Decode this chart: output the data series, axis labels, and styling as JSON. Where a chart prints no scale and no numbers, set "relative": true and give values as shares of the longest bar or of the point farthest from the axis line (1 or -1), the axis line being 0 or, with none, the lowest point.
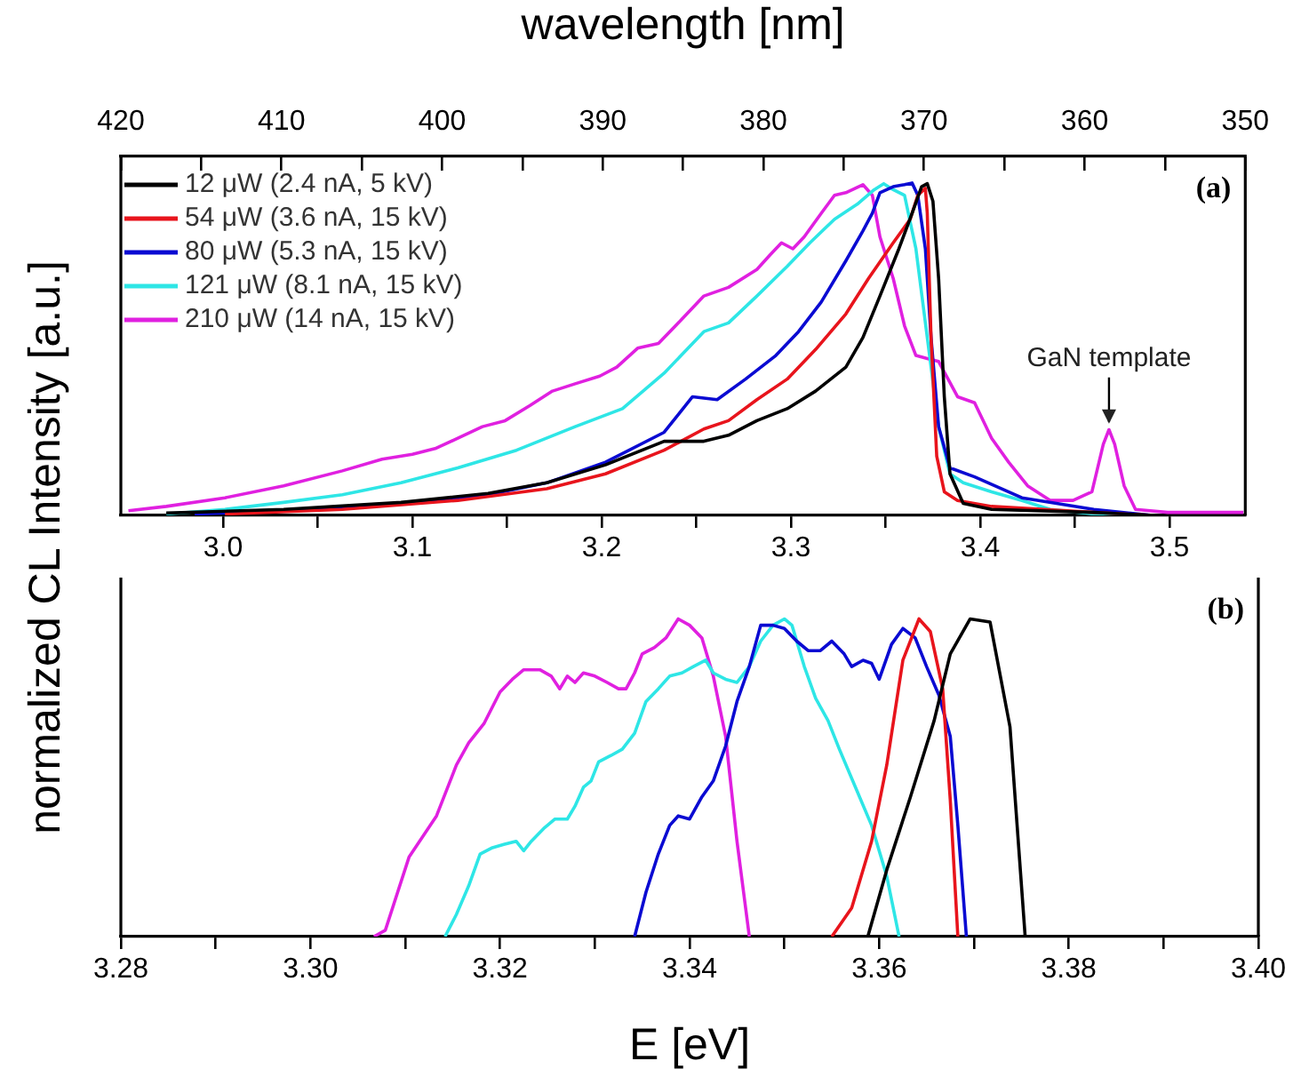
{
  "chart_data": [
    {
      "type": "line",
      "x2label": "wavelength [nm]",
      "ylabel": "normalized CL Intensity [a.u.]",
      "relative": true,
      "tick_labels": "x",
      "legend": "top left",
      "xlim": [
        2.946,
        3.54
      ],
      "xticks": [
        {
          "value": 3,
          "label": "3.0"
        },
        {
          "value": 3.05,
          "label": null
        },
        3.1,
        {
          "value": 3.15,
          "label": null
        },
        3.2,
        {
          "value": 3.25,
          "label": null
        },
        3.3,
        {
          "value": 3.35,
          "label": null
        },
        3.4,
        {
          "value": 3.45,
          "label": null
        },
        3.5
      ],
      "x2lim": [
        420,
        350
      ],
      "x2ticks": [
        420,
        {
          "value": 415,
          "label": null
        },
        410,
        {
          "value": 405,
          "label": null
        },
        400,
        {
          "value": 395,
          "label": null
        },
        390,
        {
          "value": 385,
          "label": null
        },
        380,
        {
          "value": 375,
          "label": null
        },
        370,
        {
          "value": 365,
          "label": null
        },
        360,
        {
          "value": 355,
          "label": null
        },
        350
      ],
      "annotations": [
        "(a)",
        {
          "text": "GaN template",
          "x": 3.468,
          "y": 0.26
        }
      ],
      "series": [
        {
          "name": "12 μW (2.4 nA, 5 kV)",
          "color": "#000000",
          "x": [
            2.97,
            3.032,
            3.094,
            3.14,
            3.171,
            3.202,
            3.233,
            3.254,
            3.267,
            3.282,
            3.298,
            3.313,
            3.329,
            3.338,
            3.347,
            3.357,
            3.364,
            3.369,
            3.372,
            3.375,
            3.378,
            3.381,
            3.384,
            3.391,
            3.406,
            3.46,
            3.491
          ],
          "values": [
            0.007,
            0.018,
            0.039,
            0.066,
            0.098,
            0.152,
            0.223,
            0.223,
            0.241,
            0.285,
            0.321,
            0.374,
            0.446,
            0.535,
            0.66,
            0.802,
            0.909,
            0.989,
            0.998,
            0.945,
            0.713,
            0.357,
            0.125,
            0.036,
            0.018,
            0.009,
            0
          ]
        },
        {
          "name": "54 μW (3.6 nA, 15 kV)",
          "color": "#e8141c",
          "x": [
            3.001,
            3.063,
            3.124,
            3.171,
            3.202,
            3.233,
            3.254,
            3.267,
            3.282,
            3.298,
            3.313,
            3.329,
            3.341,
            3.354,
            3.363,
            3.367,
            3.371,
            3.372,
            3.374,
            3.377,
            3.381,
            3.388,
            3.406,
            3.46,
            3.491
          ],
          "values": [
            0.004,
            0.018,
            0.045,
            0.08,
            0.125,
            0.196,
            0.26,
            0.285,
            0.348,
            0.41,
            0.499,
            0.606,
            0.713,
            0.82,
            0.891,
            0.963,
            0.984,
            0.909,
            0.535,
            0.178,
            0.071,
            0.045,
            0.027,
            0.009,
            0
          ]
        },
        {
          "name": "80 μW (5.3 nA, 15 kV)",
          "color": "#0a0ad2",
          "x": [
            2.985,
            3.032,
            3.094,
            3.14,
            3.171,
            3.202,
            3.233,
            3.248,
            3.261,
            3.276,
            3.292,
            3.304,
            3.316,
            3.329,
            3.338,
            3.343,
            3.347,
            3.354,
            3.36,
            3.364,
            3.367,
            3.371,
            3.374,
            3.378,
            3.384,
            3.397,
            3.422,
            3.46,
            3.491
          ],
          "values": [
            0.004,
            0.014,
            0.036,
            0.062,
            0.098,
            0.16,
            0.25,
            0.357,
            0.348,
            0.41,
            0.481,
            0.553,
            0.642,
            0.766,
            0.856,
            0.909,
            0.971,
            0.989,
            0.995,
            1.0,
            0.963,
            0.802,
            0.535,
            0.267,
            0.143,
            0.116,
            0.053,
            0.018,
            0
          ]
        },
        {
          "name": "121 μW (8.1 nA, 15 kV)",
          "color": "#2ee6e6",
          "x": [
            2.97,
            3.001,
            3.032,
            3.063,
            3.094,
            3.124,
            3.155,
            3.186,
            3.211,
            3.233,
            3.254,
            3.267,
            3.282,
            3.298,
            3.31,
            3.323,
            3.335,
            3.344,
            3.349,
            3.354,
            3.36,
            3.366,
            3.372,
            3.378,
            3.384,
            3.391,
            3.406,
            3.422,
            3.437,
            3.46,
            3.491
          ],
          "values": [
            0.004,
            0.018,
            0.039,
            0.062,
            0.098,
            0.143,
            0.196,
            0.267,
            0.321,
            0.428,
            0.553,
            0.579,
            0.66,
            0.749,
            0.82,
            0.891,
            0.936,
            0.98,
            0.998,
            0.98,
            0.963,
            0.802,
            0.535,
            0.267,
            0.125,
            0.098,
            0.071,
            0.045,
            0.018,
            0.004,
            0
          ]
        },
        {
          "name": "210 μW (14 nA, 15 kV)",
          "color": "#e020e0",
          "x": [
            2.95,
            2.97,
            3.001,
            3.032,
            3.063,
            3.084,
            3.1,
            3.112,
            3.124,
            3.137,
            3.149,
            3.162,
            3.174,
            3.186,
            3.199,
            3.208,
            3.219,
            3.23,
            3.242,
            3.254,
            3.267,
            3.282,
            3.289,
            3.295,
            3.301,
            3.307,
            3.316,
            3.323,
            3.329,
            3.338,
            3.343,
            3.347,
            3.354,
            3.36,
            3.366,
            3.372,
            3.378,
            3.388,
            3.397,
            3.406,
            3.415,
            3.425,
            3.437,
            3.449,
            3.459,
            3.465,
            3.468,
            3.471,
            3.476,
            3.482,
            3.499,
            3.539
          ],
          "values": [
            0.014,
            0.027,
            0.053,
            0.089,
            0.134,
            0.169,
            0.184,
            0.201,
            0.232,
            0.267,
            0.285,
            0.33,
            0.374,
            0.396,
            0.419,
            0.446,
            0.503,
            0.517,
            0.588,
            0.66,
            0.686,
            0.74,
            0.784,
            0.82,
            0.802,
            0.838,
            0.909,
            0.963,
            0.971,
            0.995,
            0.963,
            0.838,
            0.713,
            0.57,
            0.481,
            0.472,
            0.463,
            0.357,
            0.339,
            0.232,
            0.16,
            0.089,
            0.045,
            0.045,
            0.071,
            0.214,
            0.258,
            0.214,
            0.089,
            0.018,
            0.009,
            0.009
          ]
        }
      ]
    },
    {
      "type": "line",
      "xlabel": "E [eV]",
      "relative": true,
      "tick_labels": "x",
      "xlim": [
        3.28,
        3.4
      ],
      "xticks": [
        {
          "value": 3.28,
          "label": "3.28"
        },
        {
          "value": 3.29,
          "label": null
        },
        {
          "value": 3.3,
          "label": "3.30"
        },
        {
          "value": 3.31,
          "label": null
        },
        3.32,
        {
          "value": 3.33,
          "label": null
        },
        3.34,
        {
          "value": 3.35,
          "label": null
        },
        3.36,
        {
          "value": 3.37,
          "label": null
        },
        3.38,
        {
          "value": 3.39,
          "label": null
        },
        {
          "value": 3.4,
          "label": "3.40"
        }
      ],
      "annotations": [
        "(b)"
      ],
      "series": [
        {
          "color": "#000000",
          "x": [
            3.3588,
            3.3608,
            3.3633,
            3.3658,
            3.3675,
            3.3696,
            3.3717,
            3.3738,
            3.3754
          ],
          "values": [
            0,
            0.21,
            0.44,
            0.68,
            0.89,
            1.0,
            0.99,
            0.66,
            0
          ]
        },
        {
          "color": "#e8141c",
          "x": [
            3.355,
            3.3571,
            3.3592,
            3.3608,
            3.3625,
            3.3642,
            3.3654,
            3.3667,
            3.3675,
            3.3683
          ],
          "values": [
            0,
            0.09,
            0.3,
            0.54,
            0.87,
            1.0,
            0.96,
            0.78,
            0.43,
            0
          ]
        },
        {
          "color": "#0a0ad2",
          "x": [
            3.3342,
            3.3354,
            3.3367,
            3.3379,
            3.3388,
            3.34,
            3.3413,
            3.3425,
            3.3438,
            3.345,
            3.3463,
            3.3475,
            3.3488,
            3.35,
            3.3513,
            3.3525,
            3.3538,
            3.355,
            3.3563,
            3.3571,
            3.3583,
            3.3592,
            3.36,
            3.3613,
            3.3625,
            3.3638,
            3.365,
            3.3663,
            3.3675,
            3.3683,
            3.3692
          ],
          "values": [
            0,
            0.14,
            0.26,
            0.35,
            0.38,
            0.37,
            0.44,
            0.49,
            0.6,
            0.74,
            0.85,
            0.98,
            0.98,
            0.97,
            0.93,
            0.9,
            0.9,
            0.93,
            0.89,
            0.85,
            0.87,
            0.86,
            0.81,
            0.92,
            0.97,
            0.94,
            0.85,
            0.76,
            0.63,
            0.35,
            0
          ]
        },
        {
          "color": "#2ee6e6",
          "x": [
            3.3142,
            3.3154,
            3.3167,
            3.3179,
            3.3192,
            3.3204,
            3.3217,
            3.3225,
            3.3233,
            3.3246,
            3.3258,
            3.3271,
            3.3279,
            3.3288,
            3.3296,
            3.3304,
            3.3317,
            3.3329,
            3.3342,
            3.3354,
            3.3367,
            3.3379,
            3.3392,
            3.3404,
            3.3417,
            3.3425,
            3.3438,
            3.345,
            3.3463,
            3.3475,
            3.3488,
            3.35,
            3.3508,
            3.3521,
            3.3533,
            3.3546,
            3.3558,
            3.3575,
            3.3592,
            3.3608,
            3.3621
          ],
          "values": [
            0,
            0.07,
            0.16,
            0.26,
            0.28,
            0.29,
            0.3,
            0.27,
            0.3,
            0.34,
            0.37,
            0.37,
            0.41,
            0.47,
            0.49,
            0.55,
            0.57,
            0.59,
            0.64,
            0.74,
            0.78,
            0.82,
            0.83,
            0.85,
            0.87,
            0.83,
            0.81,
            0.8,
            0.85,
            0.93,
            0.98,
            1.0,
            0.98,
            0.85,
            0.75,
            0.68,
            0.59,
            0.47,
            0.35,
            0.19,
            0
          ]
        },
        {
          "color": "#e020e0",
          "x": [
            3.3067,
            3.3079,
            3.3104,
            3.3133,
            3.3154,
            3.3167,
            3.3183,
            3.32,
            3.3213,
            3.3225,
            3.3242,
            3.3254,
            3.3263,
            3.3271,
            3.3279,
            3.3288,
            3.33,
            3.3313,
            3.3325,
            3.3333,
            3.3342,
            3.335,
            3.3363,
            3.3375,
            3.3388,
            3.34,
            3.3413,
            3.3425,
            3.3438,
            3.345,
            3.3463
          ],
          "values": [
            0,
            0.02,
            0.25,
            0.38,
            0.54,
            0.61,
            0.67,
            0.77,
            0.81,
            0.84,
            0.84,
            0.82,
            0.78,
            0.82,
            0.8,
            0.83,
            0.82,
            0.8,
            0.78,
            0.78,
            0.83,
            0.89,
            0.91,
            0.94,
            1.0,
            0.98,
            0.94,
            0.82,
            0.63,
            0.3,
            0
          ]
        }
      ]
    }
  ]
}
